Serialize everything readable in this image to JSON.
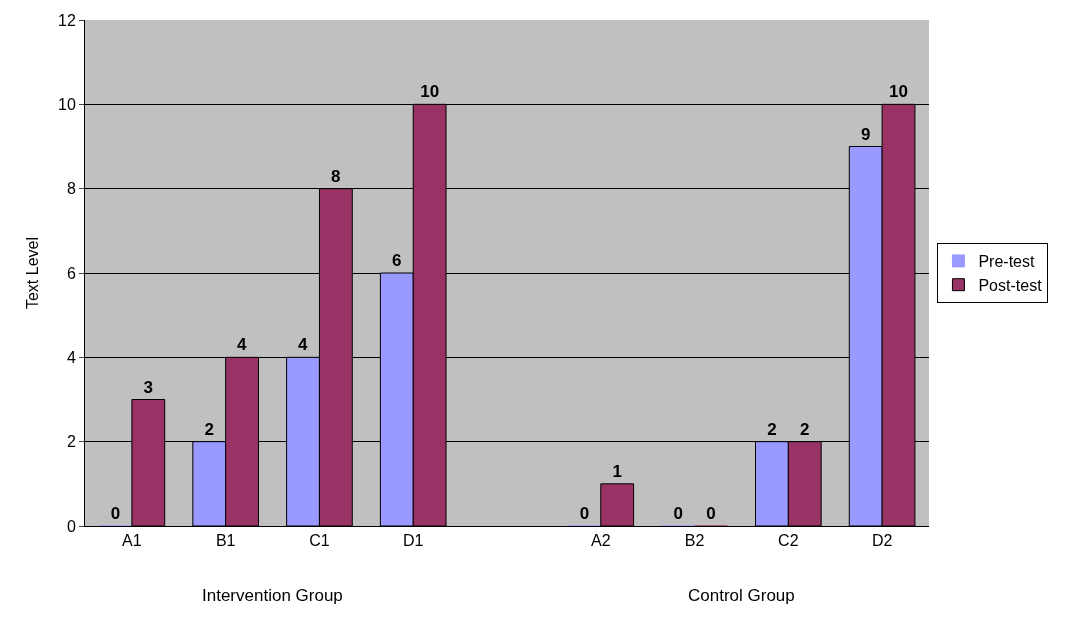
{
  "chart_data": {
    "type": "bar",
    "ylabel": "Text Level",
    "categories": [
      "A1",
      "B1",
      "C1",
      "D1",
      null,
      "A2",
      "B2",
      "C2",
      "D2"
    ],
    "series": [
      {
        "name": "Pre-test",
        "color": "#9999ff",
        "values": [
          0,
          2,
          4,
          6,
          null,
          0,
          0,
          2,
          9
        ]
      },
      {
        "name": "Post-test",
        "color": "#993366",
        "values": [
          3,
          4,
          8,
          10,
          null,
          1,
          0,
          2,
          10
        ]
      }
    ],
    "ylim": [
      0,
      12
    ],
    "yticks": [
      0,
      2,
      4,
      6,
      8,
      10,
      12
    ],
    "grid": "y",
    "legend": "right",
    "data_labels": true,
    "annotations": [
      "Intervention Group",
      "Control Group"
    ]
  }
}
